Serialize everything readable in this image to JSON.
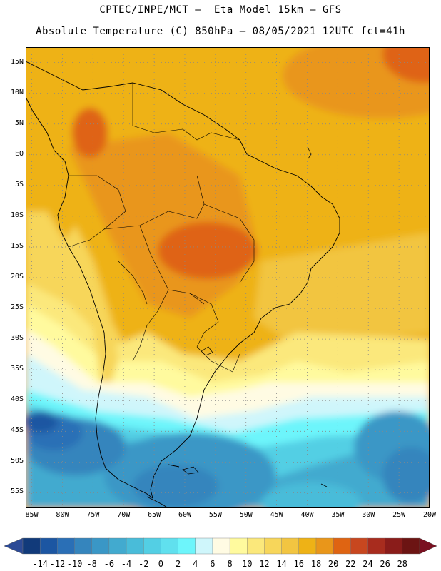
{
  "header": {
    "line1": "CPTEC/INPE/MCT –  Eta Model 15km – GFS",
    "line2": "Absolute Temperature (C) 850hPa – 08/05/2021 12UTC fct=41h"
  },
  "map": {
    "lat_labels": [
      "15N",
      "10N",
      "5N",
      "EQ",
      "5S",
      "10S",
      "15S",
      "20S",
      "25S",
      "30S",
      "35S",
      "40S",
      "45S",
      "50S",
      "55S"
    ],
    "lon_labels": [
      "85W",
      "80W",
      "75W",
      "70W",
      "65W",
      "60W",
      "55W",
      "50W",
      "45W",
      "40W",
      "35W",
      "30W",
      "25W",
      "20W"
    ],
    "lat_range": [
      17.5,
      -57.5
    ],
    "lon_range": [
      -86,
      -20
    ],
    "grid": "dotted"
  },
  "legend": {
    "labels": [
      "-14",
      "-12",
      "-10",
      "-8",
      "-6",
      "-4",
      "-2",
      "0",
      "2",
      "4",
      "6",
      "8",
      "10",
      "12",
      "14",
      "16",
      "18",
      "20",
      "22",
      "24",
      "26",
      "28"
    ],
    "colors": [
      "#113a7a",
      "#1c56a2",
      "#2a6fb6",
      "#3585bd",
      "#3a97c6",
      "#42aacf",
      "#49bcd9",
      "#53cfe4",
      "#60e0ee",
      "#6df5fb",
      "#cff6fb",
      "#fffbe3",
      "#fffa9e",
      "#fbe87b",
      "#f7d65a",
      "#f2c541",
      "#eeb216",
      "#e9961a",
      "#df6412",
      "#c8471f",
      "#a82c1e",
      "#8a1c1a",
      "#6c1413"
    ],
    "under_color": "#2c4a96",
    "over_color": "#7a1020"
  }
}
